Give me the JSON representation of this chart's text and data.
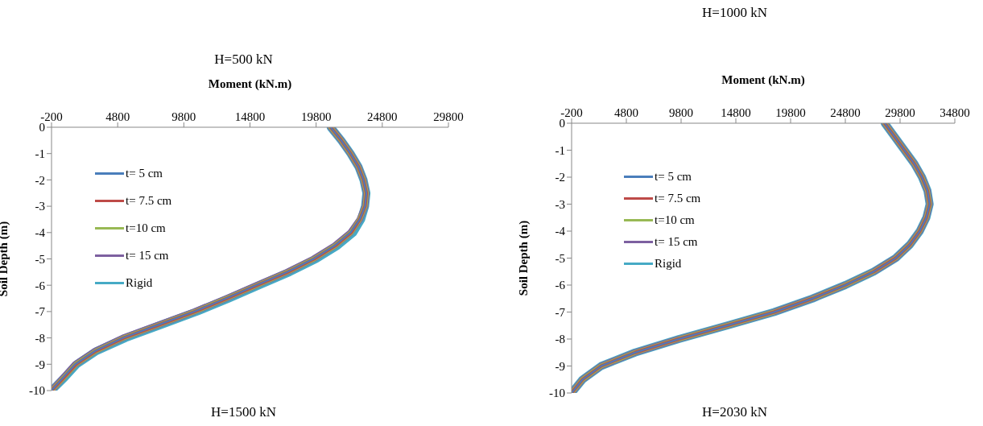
{
  "chart_data": [
    {
      "type": "line",
      "xlabel": "Moment (kN.m)",
      "ylabel": "Soil Depth (m)",
      "annotations": [
        "H=500 kN",
        "H=1500 kN"
      ],
      "xlim": [
        -200,
        29800
      ],
      "xticks": [
        -200,
        4800,
        9800,
        14800,
        19800,
        24800,
        29800
      ],
      "ylim": [
        -10,
        0
      ],
      "yticks": [
        0,
        -1,
        -2,
        -3,
        -4,
        -5,
        -6,
        -7,
        -8,
        -9,
        -10
      ],
      "grid": false,
      "legend": "top left",
      "marker": "none",
      "line_style": "solid",
      "series": [
        {
          "name": "t= 5 cm",
          "color": "#4a7ebb",
          "x": [
            20900,
            21700,
            22400,
            23000,
            23380,
            23600,
            23500,
            23100,
            22400,
            21200,
            19600,
            17600,
            15300,
            13000,
            10600,
            7900,
            5200,
            3100,
            1600,
            700,
            -200
          ],
          "values": [
            0,
            -0.5,
            -1,
            -1.5,
            -2,
            -2.5,
            -3,
            -3.5,
            -4,
            -4.5,
            -5,
            -5.5,
            -6,
            -6.5,
            -7,
            -7.5,
            -8,
            -8.5,
            -9,
            -9.5,
            -10
          ]
        },
        {
          "name": "t= 7.5 cm",
          "color": "#be4b48",
          "x": [
            20900,
            21700,
            22400,
            23000,
            23380,
            23600,
            23500,
            23100,
            22450,
            21250,
            19650,
            17650,
            15350,
            13050,
            10650,
            7950,
            5250,
            3150,
            1650,
            750,
            -200
          ],
          "values": [
            0,
            -0.5,
            -1,
            -1.5,
            -2,
            -2.5,
            -3,
            -3.5,
            -4,
            -4.5,
            -5,
            -5.5,
            -6,
            -6.5,
            -7,
            -7.5,
            -8,
            -8.5,
            -9,
            -9.5,
            -10
          ]
        },
        {
          "name": "t=10 cm",
          "color": "#98b954",
          "x": [
            20900,
            21700,
            22400,
            23000,
            23380,
            23600,
            23500,
            23100,
            22450,
            21250,
            19650,
            17650,
            15350,
            13050,
            10650,
            7950,
            5250,
            3150,
            1650,
            750,
            -200
          ],
          "values": [
            0,
            -0.5,
            -1,
            -1.5,
            -2,
            -2.5,
            -3,
            -3.5,
            -4,
            -4.5,
            -5,
            -5.5,
            -6,
            -6.5,
            -7,
            -7.5,
            -8,
            -8.5,
            -9,
            -9.5,
            -10
          ]
        },
        {
          "name": "t= 15 cm",
          "color": "#7d60a0",
          "x": [
            20900,
            21700,
            22400,
            23000,
            23380,
            23600,
            23500,
            23100,
            22400,
            21200,
            19600,
            17600,
            15300,
            13000,
            10600,
            7900,
            5200,
            3100,
            1600,
            700,
            -200
          ],
          "values": [
            0,
            -0.5,
            -1,
            -1.5,
            -2,
            -2.5,
            -3,
            -3.5,
            -4,
            -4.5,
            -5,
            -5.5,
            -6,
            -6.5,
            -7,
            -7.5,
            -8,
            -8.5,
            -9,
            -9.5,
            -10
          ]
        },
        {
          "name": "Rigid",
          "color": "#46aac5",
          "x": [
            20900,
            21700,
            22400,
            23000,
            23380,
            23600,
            23500,
            23200,
            22600,
            21400,
            19800,
            17800,
            15500,
            13200,
            10800,
            8100,
            5400,
            3200,
            1700,
            800,
            -200
          ],
          "values": [
            0,
            -0.5,
            -1,
            -1.5,
            -2,
            -2.5,
            -3,
            -3.5,
            -4,
            -4.5,
            -5,
            -5.5,
            -6,
            -6.5,
            -7,
            -7.5,
            -8,
            -8.5,
            -9,
            -9.5,
            -10
          ]
        }
      ]
    },
    {
      "type": "line",
      "xlabel": "Moment (kN.m)",
      "ylabel": "Soil Depth (m)",
      "annotations": [
        "H=1000 kN",
        "H=2030 kN"
      ],
      "xlim": [
        -200,
        34800
      ],
      "xticks": [
        -200,
        4800,
        9800,
        14800,
        19800,
        24800,
        29800,
        34800
      ],
      "ylim": [
        -10,
        0
      ],
      "yticks": [
        0,
        -1,
        -2,
        -3,
        -4,
        -5,
        -6,
        -7,
        -8,
        -9,
        -10
      ],
      "grid": false,
      "legend": "top left",
      "marker": "none",
      "line_style": "solid",
      "series": [
        {
          "name": "t= 5 cm",
          "color": "#4a7ebb",
          "x": [
            28400,
            29300,
            30200,
            31100,
            31800,
            32300,
            32500,
            32200,
            31600,
            30700,
            29400,
            27400,
            24800,
            21800,
            18300,
            14000,
            9600,
            5600,
            2500,
            800,
            -200
          ],
          "values": [
            0,
            -0.5,
            -1,
            -1.5,
            -2,
            -2.5,
            -3,
            -3.5,
            -4,
            -4.5,
            -5,
            -5.5,
            -6,
            -6.5,
            -7,
            -7.5,
            -8,
            -8.5,
            -9,
            -9.5,
            -10
          ]
        },
        {
          "name": "t= 7.5 cm",
          "color": "#be4b48",
          "x": [
            28400,
            29300,
            30200,
            31100,
            31800,
            32300,
            32500,
            32200,
            31600,
            30700,
            29400,
            27400,
            24800,
            21800,
            18300,
            14000,
            9600,
            5600,
            2500,
            800,
            -200
          ],
          "values": [
            0,
            -0.5,
            -1,
            -1.5,
            -2,
            -2.5,
            -3,
            -3.5,
            -4,
            -4.5,
            -5,
            -5.5,
            -6,
            -6.5,
            -7,
            -7.5,
            -8,
            -8.5,
            -9,
            -9.5,
            -10
          ]
        },
        {
          "name": "t=10 cm",
          "color": "#98b954",
          "x": [
            28400,
            29300,
            30200,
            31100,
            31800,
            32300,
            32500,
            32200,
            31600,
            30700,
            29400,
            27400,
            24800,
            21800,
            18300,
            14000,
            9600,
            5600,
            2500,
            800,
            -200
          ],
          "values": [
            0,
            -0.5,
            -1,
            -1.5,
            -2,
            -2.5,
            -3,
            -3.5,
            -4,
            -4.5,
            -5,
            -5.5,
            -6,
            -6.5,
            -7,
            -7.5,
            -8,
            -8.5,
            -9,
            -9.5,
            -10
          ]
        },
        {
          "name": "t= 15 cm",
          "color": "#7d60a0",
          "x": [
            28400,
            29300,
            30200,
            31100,
            31800,
            32300,
            32500,
            32200,
            31600,
            30700,
            29400,
            27400,
            24800,
            21800,
            18300,
            14000,
            9600,
            5600,
            2500,
            800,
            -200
          ],
          "values": [
            0,
            -0.5,
            -1,
            -1.5,
            -2,
            -2.5,
            -3,
            -3.5,
            -4,
            -4.5,
            -5,
            -5.5,
            -6,
            -6.5,
            -7,
            -7.5,
            -8,
            -8.5,
            -9,
            -9.5,
            -10
          ]
        },
        {
          "name": "Rigid",
          "color": "#46aac5",
          "x": [
            28400,
            29300,
            30200,
            31100,
            31800,
            32300,
            32500,
            32200,
            31600,
            30700,
            29400,
            27400,
            24800,
            21800,
            18300,
            14000,
            9600,
            5600,
            2500,
            800,
            -200
          ],
          "values": [
            0,
            -0.5,
            -1,
            -1.5,
            -2,
            -2.5,
            -3,
            -3.5,
            -4,
            -4.5,
            -5,
            -5.5,
            -6,
            -6.5,
            -7,
            -7.5,
            -8,
            -8.5,
            -9,
            -9.5,
            -10
          ]
        }
      ]
    }
  ]
}
